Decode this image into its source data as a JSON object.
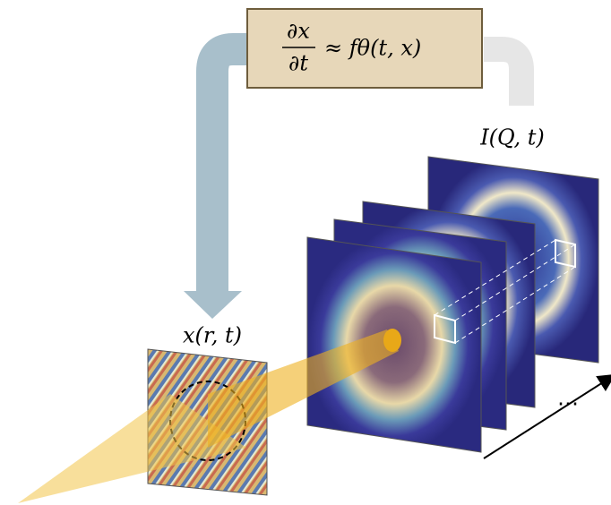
{
  "equation": {
    "numerator": "∂x",
    "denominator": "∂t",
    "rhs": "≈ fθ(t, x)"
  },
  "labels": {
    "intensity": "I(Q, t)",
    "real_space": "x(r, t)",
    "ellipsis": "⋯"
  }
}
